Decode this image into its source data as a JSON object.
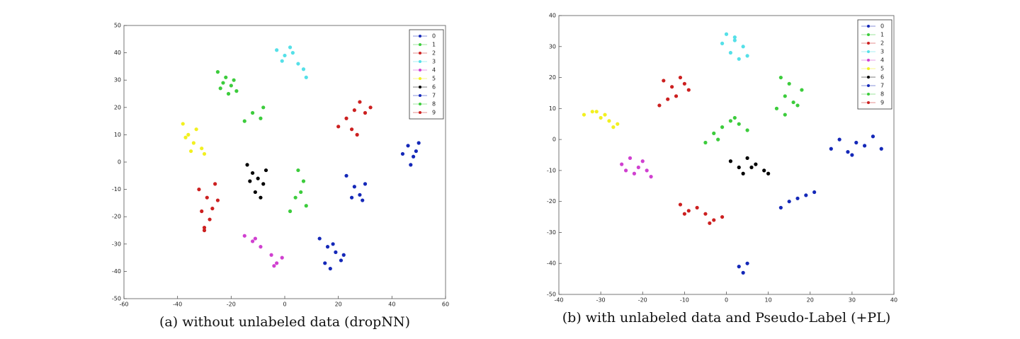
{
  "chart_data": [
    {
      "type": "scatter",
      "caption": "(a) without unlabeled data (dropNN)",
      "xlim": [
        -60,
        60
      ],
      "xticks": [
        -60,
        -40,
        -20,
        0,
        20,
        40,
        60
      ],
      "ylim": [
        -50,
        50
      ],
      "yticks": [
        -50,
        -40,
        -30,
        -20,
        -10,
        0,
        10,
        20,
        30,
        40,
        50
      ],
      "legend": "upper right",
      "series": [
        {
          "name": "0",
          "color": "#1428b8",
          "x": [
            44,
            46,
            48,
            50,
            47,
            49,
            23,
            26,
            28,
            30,
            25,
            29
          ],
          "y": [
            3,
            6,
            2,
            7,
            -1,
            4,
            -5,
            -9,
            -12,
            -8,
            -13,
            -14
          ]
        },
        {
          "name": "1",
          "color": "#3ccc3c",
          "x": [
            -25,
            -22,
            -20,
            -24,
            -21,
            -18,
            -19,
            -23
          ],
          "y": [
            33,
            31,
            28,
            27,
            25,
            26,
            30,
            29
          ]
        },
        {
          "name": "2",
          "color": "#cc2020",
          "x": [
            -32,
            -29,
            -27,
            -31,
            -28,
            -26,
            -30,
            -25,
            -30
          ],
          "y": [
            -10,
            -13,
            -17,
            -18,
            -21,
            -8,
            -25,
            -14,
            -24
          ]
        },
        {
          "name": "3",
          "color": "#55e0e8",
          "x": [
            -3,
            0,
            2,
            -1,
            5,
            7,
            8,
            3
          ],
          "y": [
            41,
            39,
            42,
            37,
            36,
            34,
            31,
            40
          ]
        },
        {
          "name": "4",
          "color": "#d040d0",
          "x": [
            -15,
            -12,
            -9,
            -11,
            -5,
            -3,
            -1,
            -4
          ],
          "y": [
            -27,
            -29,
            -31,
            -28,
            -34,
            -37,
            -35,
            -38
          ]
        },
        {
          "name": "5",
          "color": "#f2f020",
          "x": [
            -38,
            -36,
            -34,
            -33,
            -31,
            -35,
            -30,
            -37
          ],
          "y": [
            14,
            10,
            7,
            12,
            5,
            4,
            3,
            9
          ]
        },
        {
          "name": "6",
          "color": "#000000",
          "x": [
            -14,
            -12,
            -10,
            -8,
            -11,
            -7,
            -9,
            -13
          ],
          "y": [
            -1,
            -4,
            -6,
            -8,
            -11,
            -3,
            -13,
            -7
          ]
        },
        {
          "name": "7",
          "color": "#1428b8",
          "x": [
            13,
            16,
            19,
            21,
            15,
            18,
            22,
            17
          ],
          "y": [
            -28,
            -31,
            -33,
            -36,
            -37,
            -30,
            -34,
            -39
          ]
        },
        {
          "name": "8",
          "color": "#3ccc3c",
          "x": [
            -15,
            -12,
            -9,
            -8,
            5,
            7,
            4,
            8,
            2,
            6
          ],
          "y": [
            15,
            18,
            16,
            20,
            -3,
            -7,
            -13,
            -16,
            -18,
            -11
          ]
        },
        {
          "name": "9",
          "color": "#cc2020",
          "x": [
            20,
            23,
            26,
            28,
            30,
            25,
            32,
            27
          ],
          "y": [
            13,
            16,
            19,
            22,
            18,
            12,
            20,
            10
          ]
        }
      ]
    },
    {
      "type": "scatter",
      "caption": "(b) with unlabeled data and Pseudo-Label (+PL)",
      "xlim": [
        -40,
        40
      ],
      "xticks": [
        -40,
        -30,
        -20,
        -10,
        0,
        10,
        20,
        30,
        40
      ],
      "ylim": [
        -50,
        40
      ],
      "yticks": [
        -50,
        -40,
        -30,
        -20,
        -10,
        0,
        10,
        20,
        30,
        40
      ],
      "legend": "upper right",
      "series": [
        {
          "name": "0",
          "color": "#1428b8",
          "x": [
            25,
            27,
            29,
            31,
            33,
            35,
            37,
            30
          ],
          "y": [
            -3,
            0,
            -4,
            -1,
            -2,
            1,
            -3,
            -5
          ]
        },
        {
          "name": "1",
          "color": "#3ccc3c",
          "x": [
            -3,
            -1,
            1,
            3,
            5,
            -5,
            -2,
            2
          ],
          "y": [
            2,
            4,
            6,
            5,
            3,
            -1,
            0,
            7
          ]
        },
        {
          "name": "2",
          "color": "#cc2020",
          "x": [
            -15,
            -13,
            -11,
            -9,
            -12,
            -14,
            -10,
            -16
          ],
          "y": [
            19,
            17,
            20,
            16,
            14,
            13,
            18,
            11
          ]
        },
        {
          "name": "3",
          "color": "#55e0e8",
          "x": [
            0,
            2,
            4,
            1,
            3,
            5,
            -1,
            2
          ],
          "y": [
            34,
            32,
            30,
            28,
            26,
            27,
            31,
            33
          ]
        },
        {
          "name": "4",
          "color": "#d040d0",
          "x": [
            -25,
            -23,
            -21,
            -19,
            -22,
            -20,
            -24,
            -18
          ],
          "y": [
            -8,
            -6,
            -9,
            -10,
            -11,
            -7,
            -10,
            -12
          ]
        },
        {
          "name": "5",
          "color": "#f2f020",
          "x": [
            -34,
            -32,
            -30,
            -28,
            -26,
            -31,
            -27,
            -29
          ],
          "y": [
            8,
            9,
            7,
            6,
            5,
            9,
            4,
            8
          ]
        },
        {
          "name": "6",
          "color": "#000000",
          "x": [
            1,
            3,
            5,
            7,
            9,
            4,
            6,
            10
          ],
          "y": [
            -7,
            -9,
            -6,
            -8,
            -10,
            -11,
            -9,
            -11
          ]
        },
        {
          "name": "7",
          "color": "#1428b8",
          "x": [
            13,
            15,
            17,
            19,
            21,
            3,
            4,
            5
          ],
          "y": [
            -22,
            -20,
            -19,
            -18,
            -17,
            -41,
            -43,
            -40
          ]
        },
        {
          "name": "8",
          "color": "#3ccc3c",
          "x": [
            12,
            14,
            16,
            18,
            15,
            13,
            17,
            14
          ],
          "y": [
            10,
            14,
            12,
            16,
            18,
            20,
            11,
            8
          ]
        },
        {
          "name": "9",
          "color": "#cc2020",
          "x": [
            -11,
            -9,
            -7,
            -5,
            -3,
            -1,
            -10,
            -4
          ],
          "y": [
            -21,
            -23,
            -22,
            -24,
            -26,
            -25,
            -24,
            -27
          ]
        }
      ]
    }
  ]
}
